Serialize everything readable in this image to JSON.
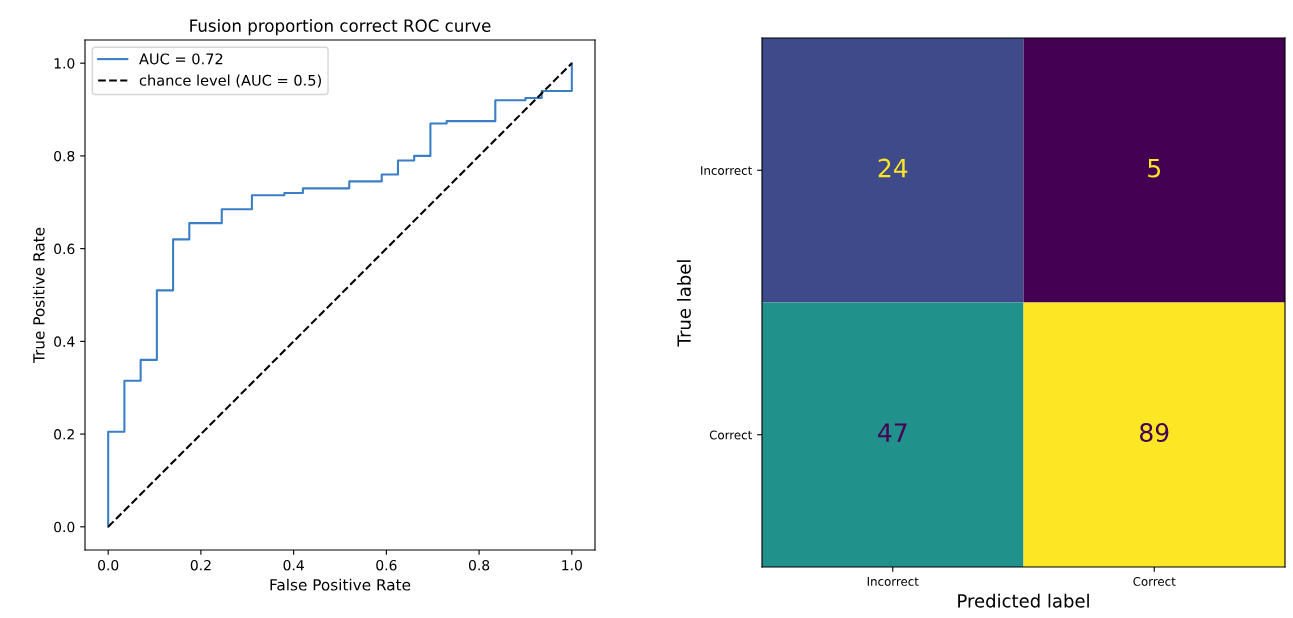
{
  "chart_data": [
    {
      "type": "step",
      "title": "Fusion proportion correct ROC curve",
      "xlabel": "False Positive Rate",
      "ylabel": "True Positive Rate",
      "xlim": [
        -0.05,
        1.05
      ],
      "ylim": [
        -0.05,
        1.05
      ],
      "xticks": [
        {
          "value": 0,
          "label": "0.0"
        },
        {
          "value": 0.2,
          "label": "0.2"
        },
        {
          "value": 0.4,
          "label": "0.4"
        },
        {
          "value": 0.6,
          "label": "0.6"
        },
        {
          "value": 0.8,
          "label": "0.8"
        },
        {
          "value": 1,
          "label": "1.0"
        }
      ],
      "yticks": [
        {
          "value": 0,
          "label": "0.0"
        },
        {
          "value": 0.2,
          "label": "0.2"
        },
        {
          "value": 0.4,
          "label": "0.4"
        },
        {
          "value": 0.6,
          "label": "0.6"
        },
        {
          "value": 0.8,
          "label": "0.8"
        },
        {
          "value": 1,
          "label": "1.0"
        }
      ],
      "legend": "top left",
      "grid": false,
      "series": [
        {
          "name": "AUC = 0.72",
          "type": "step",
          "color": "#3a7fc6",
          "line_style": "solid",
          "x": [
            0,
            0,
            0.035,
            0.07,
            0.105,
            0.14,
            0.175,
            0.245,
            0.31,
            0.38,
            0.42,
            0.52,
            0.59,
            0.625,
            0.66,
            0.695,
            0.73,
            0.835,
            0.9,
            0.935,
            1.0,
            1.0
          ],
          "values": [
            0,
            0.205,
            0.315,
            0.36,
            0.51,
            0.62,
            0.655,
            0.685,
            0.715,
            0.72,
            0.73,
            0.745,
            0.76,
            0.79,
            0.8,
            0.87,
            0.875,
            0.92,
            0.925,
            0.94,
            0.94,
            1.0
          ]
        },
        {
          "name": "chance level (AUC = 0.5)",
          "type": "line",
          "color": "#000000",
          "line_style": "dashed",
          "x": [
            0,
            1
          ],
          "values": [
            0,
            1
          ]
        }
      ]
    },
    {
      "type": "heatmap",
      "xlabel": "Predicted label",
      "ylabel": "True label",
      "categories": [
        "Incorrect",
        "Correct"
      ],
      "y_categories": [
        "Incorrect",
        "Correct"
      ],
      "cells": [
        [
          24,
          5
        ],
        [
          47,
          89
        ]
      ],
      "data_labels": true
    }
  ]
}
